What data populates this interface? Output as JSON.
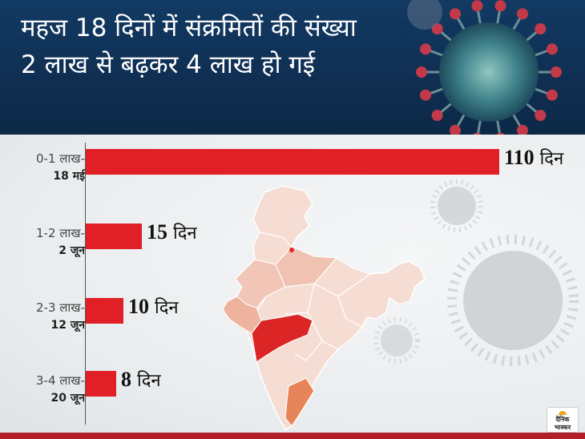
{
  "header": {
    "title": "महज 18 दिनों में संक्रमितों की संख्या 2 लाख से बढ़कर 4 लाख हो गई"
  },
  "logo": {
    "text": "दैनिक भास्कर"
  },
  "colors": {
    "bar": "#e11f26",
    "header_bg": "#123a63",
    "map_highlight": "#dc2626",
    "map_tamilnadu": "#e8845a"
  },
  "chart_data": {
    "type": "bar",
    "orientation": "horizontal",
    "categories": [
      "0-1 लाख-",
      "1-2 लाख-",
      "2-3 लाख-",
      "3-4 लाख-"
    ],
    "dates": [
      "18 मई",
      "2 जून",
      "12 जून",
      "20 जून"
    ],
    "values": [
      110,
      15,
      10,
      8
    ],
    "unit": "दिन",
    "value_labels": [
      "110",
      "15",
      "10",
      "8"
    ],
    "xlim": [
      0,
      110
    ]
  }
}
